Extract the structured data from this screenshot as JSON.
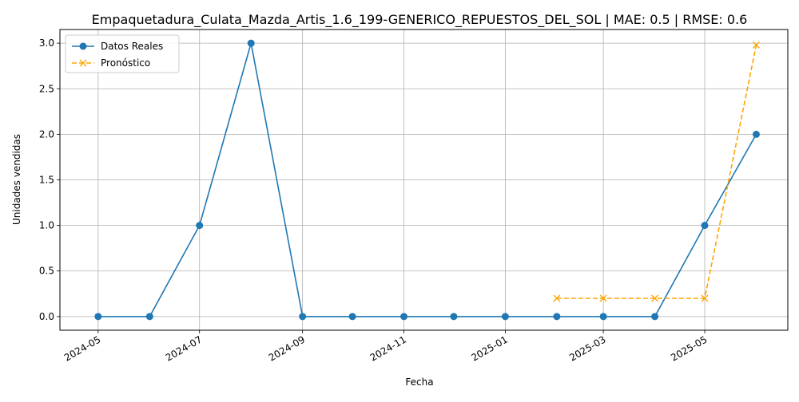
{
  "chart_data": {
    "type": "line",
    "title": "Empaquetadura_Culata_Mazda_Artis_1.6_199-GENERICO_REPUESTOS_DEL_SOL | MAE: 0.5 | RMSE: 0.6",
    "xlabel": "Fecha",
    "ylabel": "Unidades vendidas",
    "x_ticks": [
      "2024-05",
      "2024-07",
      "2024-09",
      "2024-11",
      "2025-01",
      "2025-03",
      "2025-05"
    ],
    "y_ticks": [
      "0.0",
      "0.5",
      "1.0",
      "1.5",
      "2.0",
      "2.5",
      "3.0"
    ],
    "ylim": [
      -0.15,
      3.15
    ],
    "xlim": [
      "2024-04-08",
      "2025-06-20"
    ],
    "grid": true,
    "legend_position": "top-left",
    "series": [
      {
        "name": "Datos Reales",
        "color": "#1f77b4",
        "line_style": "solid",
        "marker": "circle",
        "x": [
          "2024-05-01",
          "2024-06-01",
          "2024-07-01",
          "2024-08-01",
          "2024-09-01",
          "2024-10-01",
          "2024-11-01",
          "2024-12-01",
          "2025-01-01",
          "2025-02-01",
          "2025-03-01",
          "2025-04-01",
          "2025-05-01",
          "2025-06-01"
        ],
        "values": [
          0,
          0,
          1,
          3,
          0,
          0,
          0,
          0,
          0,
          0,
          0,
          0,
          1,
          2
        ]
      },
      {
        "name": "Pronóstico",
        "color": "#ffa500",
        "line_style": "dashed",
        "marker": "x",
        "x": [
          "2025-02-01",
          "2025-03-01",
          "2025-04-01",
          "2025-05-01",
          "2025-06-01"
        ],
        "values": [
          0.2,
          0.2,
          0.2,
          0.2,
          2.98
        ]
      }
    ]
  }
}
